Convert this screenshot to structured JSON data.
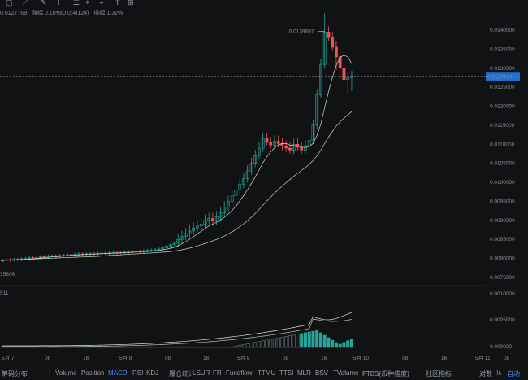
{
  "toolbar": {
    "icons": [
      "crosshair-icon",
      "line-tool-icon",
      "brush-icon",
      "path-tool-icon",
      "fib-tool-icon",
      "pattern-tool-icon",
      "ruler-icon",
      "text-tool-icon",
      "measure-icon",
      "zoom-icon",
      "settings-icon"
    ]
  },
  "info": {
    "price": "0.0127769",
    "change": "涨幅 0.10%(0.0(4)124)",
    "amplitude": "振幅 1.32%"
  },
  "chart": {
    "high_label": "0.0139697",
    "current_price": "0.0127769",
    "left_label": "75806",
    "macd_axis_label": "511",
    "price_ticks": [
      "0.0140000",
      "0.0135000",
      "0.0130000",
      "0.0125000",
      "0.0120000",
      "0.0115000",
      "0.0110000",
      "0.0105000",
      "0.0100000",
      "0.0095000",
      "0.0090000",
      "0.0085000",
      "0.0080000",
      "0.0075000"
    ],
    "macd_ticks": [
      "0.0010000",
      "0.0005000",
      "0.000000"
    ],
    "time_labels": [
      "5月 7",
      "08",
      "16",
      "5月 8",
      "08",
      "16",
      "5月 9",
      "08",
      "16",
      "5月 10",
      "08",
      "16",
      "5月 11",
      "08"
    ],
    "colors": {
      "up": "#26a69a",
      "down": "#ef5350",
      "ma_fast": "#d9d9c8",
      "ma_slow": "#c8d8b8",
      "price_tag": "#1e6fd0"
    }
  },
  "bottom": {
    "left": "筹码分布",
    "indicators": [
      "Volume",
      "Position",
      "MACD",
      "RSI",
      "KDJ",
      "爆仓统计",
      "LSUR",
      "FR",
      "Fundflow",
      "TTMU",
      "TTSI",
      "MLR",
      "BSV",
      "TVolume",
      "FTBS(币种维度)"
    ],
    "active_indicator": "MACD",
    "right": [
      "社区指标",
      "对数",
      "%",
      "自动"
    ]
  }
}
